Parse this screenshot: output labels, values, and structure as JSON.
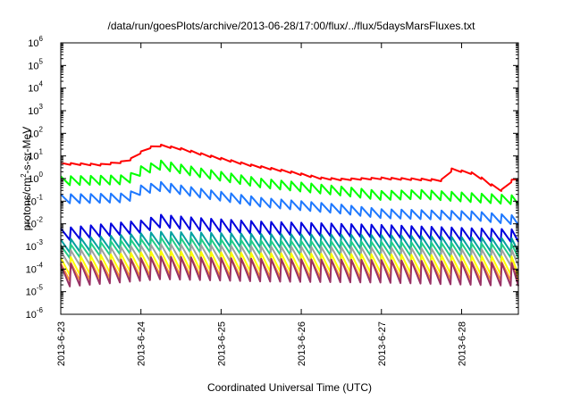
{
  "chart_data": {
    "type": "line",
    "title": "/data/run/goesPlots/archive/2013-06-28/17:00/flux/../flux/5daysMarsFluxes.txt",
    "xlabel": "Coordinated Universal Time (UTC)",
    "ylabel": {
      "pre": "protons/cm",
      "sup": "2",
      "post": "-s-sr-MeV"
    },
    "yscale": "log",
    "ylim_exp": [
      -6,
      6
    ],
    "y_ticks": [
      {
        "base": "10",
        "exp": "-6"
      },
      {
        "base": "10",
        "exp": "-5"
      },
      {
        "base": "10",
        "exp": "-4"
      },
      {
        "base": "10",
        "exp": "-3"
      },
      {
        "base": "10",
        "exp": "-2"
      },
      {
        "base": "10",
        "exp": "-1"
      },
      {
        "base": "10",
        "exp": "0"
      },
      {
        "base": "10",
        "exp": "1"
      },
      {
        "base": "10",
        "exp": "2"
      },
      {
        "base": "10",
        "exp": "3"
      },
      {
        "base": "10",
        "exp": "4"
      },
      {
        "base": "10",
        "exp": "5"
      },
      {
        "base": "10",
        "exp": "6"
      }
    ],
    "x_ticks": [
      "2013-6-23",
      "2013-6-24",
      "2013-6-25",
      "2013-6-26",
      "2013-6-27",
      "2013-6-28"
    ],
    "xlim": [
      "2013-06-23T00:00",
      "2013-06-28T17:00"
    ],
    "grid": false,
    "legend": "none",
    "series": [
      {
        "color": "#ff0000",
        "sawtooth": false,
        "amp": 0.08,
        "points": [
          [
            "2013-06-23T00:00",
            0.7
          ],
          [
            "2013-06-23T12:00",
            0.65
          ],
          [
            "2013-06-23T20:00",
            0.8
          ],
          [
            "2013-06-24T02:00",
            1.4
          ],
          [
            "2013-06-24T06:00",
            1.5
          ],
          [
            "2013-06-24T12:00",
            1.35
          ],
          [
            "2013-06-24T20:00",
            1.05
          ],
          [
            "2013-06-25T08:00",
            0.65
          ],
          [
            "2013-06-25T20:00",
            0.35
          ],
          [
            "2013-06-26T06:00",
            0.05
          ],
          [
            "2013-06-26T12:00",
            0.0
          ],
          [
            "2013-06-27T00:00",
            0.05
          ],
          [
            "2013-06-27T12:00",
            0.0
          ],
          [
            "2013-06-27T20:00",
            -0.05
          ],
          [
            "2013-06-27T21:00",
            0.45
          ],
          [
            "2013-06-28T04:00",
            0.25
          ],
          [
            "2013-06-28T10:00",
            -0.35
          ],
          [
            "2013-06-28T13:00",
            -0.55
          ],
          [
            "2013-06-28T15:00",
            -0.05
          ],
          [
            "2013-06-28T17:00",
            0.05
          ]
        ]
      },
      {
        "color": "#00ff00",
        "sawtooth": true,
        "amp": 0.4,
        "points": [
          [
            "2013-06-23T00:00",
            -0.3
          ],
          [
            "2013-06-23T20:00",
            -0.25
          ],
          [
            "2013-06-24T00:00",
            0.15
          ],
          [
            "2013-06-24T06:00",
            0.4
          ],
          [
            "2013-06-24T18:00",
            0.05
          ],
          [
            "2013-06-25T12:00",
            -0.4
          ],
          [
            "2013-06-26T12:00",
            -0.75
          ],
          [
            "2013-06-27T00:00",
            -0.95
          ],
          [
            "2013-06-27T12:00",
            -0.9
          ],
          [
            "2013-06-28T04:00",
            -1.05
          ],
          [
            "2013-06-28T17:00",
            -1.15
          ]
        ]
      },
      {
        "color": "#1e78ff",
        "sawtooth": true,
        "amp": 0.4,
        "points": [
          [
            "2013-06-23T00:00",
            -1.1
          ],
          [
            "2013-06-23T20:00",
            -1.05
          ],
          [
            "2013-06-24T00:00",
            -0.7
          ],
          [
            "2013-06-24T06:00",
            -0.55
          ],
          [
            "2013-06-24T18:00",
            -0.85
          ],
          [
            "2013-06-25T12:00",
            -1.25
          ],
          [
            "2013-06-26T12:00",
            -1.55
          ],
          [
            "2013-06-27T00:00",
            -1.75
          ],
          [
            "2013-06-28T04:00",
            -1.85
          ],
          [
            "2013-06-28T17:00",
            -2.05
          ]
        ]
      },
      {
        "color": "#0000dd",
        "sawtooth": true,
        "amp": 0.55,
        "points": [
          [
            "2013-06-23T00:00",
            -2.75
          ],
          [
            "2013-06-24T00:00",
            -2.4
          ],
          [
            "2013-06-24T06:00",
            -2.15
          ],
          [
            "2013-06-24T18:00",
            -2.3
          ],
          [
            "2013-06-25T12:00",
            -2.45
          ],
          [
            "2013-06-26T12:00",
            -2.55
          ],
          [
            "2013-06-27T00:00",
            -2.6
          ],
          [
            "2013-06-28T04:00",
            -2.75
          ],
          [
            "2013-06-28T17:00",
            -2.8
          ]
        ]
      },
      {
        "color": "#00a0a0",
        "sawtooth": true,
        "amp": 0.6,
        "points": [
          [
            "2013-06-23T00:00",
            -3.3
          ],
          [
            "2013-06-24T06:00",
            -2.95
          ],
          [
            "2013-06-25T12:00",
            -3.05
          ],
          [
            "2013-06-27T00:00",
            -3.1
          ],
          [
            "2013-06-28T17:00",
            -3.25
          ]
        ]
      },
      {
        "color": "#22cc88",
        "sawtooth": true,
        "amp": 0.6,
        "points": [
          [
            "2013-06-23T00:00",
            -3.55
          ],
          [
            "2013-06-24T06:00",
            -3.2
          ],
          [
            "2013-06-25T12:00",
            -3.35
          ],
          [
            "2013-06-27T00:00",
            -3.4
          ],
          [
            "2013-06-28T17:00",
            -3.5
          ]
        ]
      },
      {
        "color": "#a0a0a0",
        "sawtooth": true,
        "amp": 0.7,
        "points": [
          [
            "2013-06-23T00:00",
            -3.9
          ],
          [
            "2013-06-24T06:00",
            -3.6
          ],
          [
            "2013-06-25T12:00",
            -3.7
          ],
          [
            "2013-06-27T00:00",
            -3.75
          ],
          [
            "2013-06-28T17:00",
            -3.85
          ]
        ]
      },
      {
        "color": "#ffff00",
        "sawtooth": true,
        "amp": 0.8,
        "points": [
          [
            "2013-06-23T00:00",
            -4.3
          ],
          [
            "2013-06-24T06:00",
            -4.0
          ],
          [
            "2013-06-25T12:00",
            -4.1
          ],
          [
            "2013-06-27T00:00",
            -4.15
          ],
          [
            "2013-06-28T17:00",
            -4.25
          ]
        ]
      },
      {
        "color": "#ff9933",
        "sawtooth": true,
        "amp": 0.8,
        "points": [
          [
            "2013-06-23T00:00",
            -4.55
          ],
          [
            "2013-06-24T06:00",
            -4.25
          ],
          [
            "2013-06-25T12:00",
            -4.35
          ],
          [
            "2013-06-27T00:00",
            -4.4
          ],
          [
            "2013-06-28T17:00",
            -4.5
          ]
        ]
      },
      {
        "color": "#993366",
        "sawtooth": true,
        "amp": 1.0,
        "points": [
          [
            "2013-06-23T00:00",
            -4.8
          ],
          [
            "2013-06-24T06:00",
            -4.45
          ],
          [
            "2013-06-25T12:00",
            -4.55
          ],
          [
            "2013-06-27T00:00",
            -4.6
          ],
          [
            "2013-06-28T17:00",
            -4.75
          ]
        ]
      }
    ]
  }
}
